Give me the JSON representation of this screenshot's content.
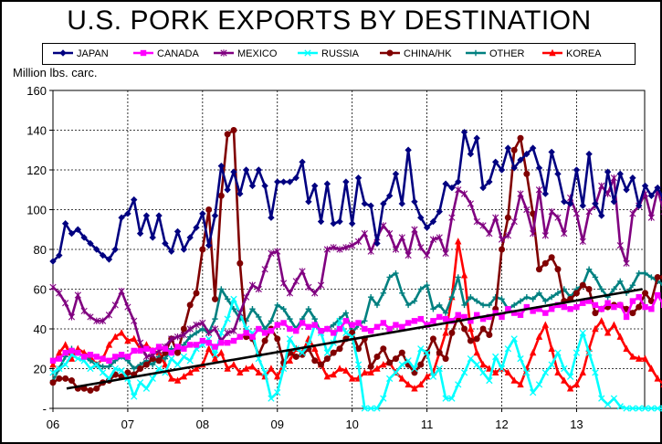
{
  "chart_data": {
    "type": "line",
    "title": "U.S. PORK EXPORTS BY DESTINATION",
    "ylabel": "Million lbs. carc.",
    "ylim": [
      0,
      160
    ],
    "yticks": [
      "-",
      "20",
      "40",
      "60",
      "80",
      "100",
      "120",
      "140",
      "160"
    ],
    "xticks": [
      "06",
      "07",
      "08",
      "09",
      "10",
      "11",
      "12",
      "13"
    ],
    "x_start": "2006-01",
    "x_end": "2013-09",
    "legend_position": "top",
    "grid": true,
    "trendline": {
      "color": "#000000",
      "from": {
        "x": "2006-01",
        "y": 10
      },
      "to": {
        "x": "2013-12",
        "y": 60
      }
    },
    "series": [
      {
        "name": "JAPAN",
        "color": "#000080",
        "marker": "diamond",
        "values": [
          74,
          77,
          93,
          88,
          90,
          86,
          83,
          80,
          77,
          75,
          80,
          96,
          98,
          105,
          88,
          97,
          86,
          97,
          83,
          79,
          89,
          80,
          86,
          91,
          98,
          82,
          97,
          122,
          110,
          119,
          108,
          120,
          112,
          120,
          112,
          96,
          114,
          114,
          114,
          116,
          124,
          104,
          112,
          94,
          113,
          93,
          94,
          114,
          93,
          116,
          103,
          102,
          83,
          103,
          107,
          118,
          103,
          130,
          104,
          96,
          91,
          94,
          99,
          113,
          111,
          114,
          139,
          128,
          136,
          111,
          114,
          124,
          120,
          131,
          121,
          125,
          128,
          131,
          121,
          108,
          129,
          118,
          104,
          103,
          120,
          102,
          128,
          103,
          97,
          119,
          104,
          118,
          110,
          116,
          102,
          112,
          107,
          111,
          105,
          104
        ]
      },
      {
        "name": "CANADA",
        "color": "#ff00ff",
        "marker": "square",
        "values": [
          24,
          25,
          28,
          29,
          28,
          26,
          27,
          26,
          25,
          24,
          26,
          27,
          26,
          29,
          29,
          30,
          29,
          31,
          30,
          28,
          31,
          30,
          32,
          32,
          34,
          33,
          31,
          33,
          33,
          34,
          36,
          38,
          36,
          40,
          38,
          39,
          42,
          43,
          40,
          39,
          43,
          41,
          42,
          39,
          40,
          38,
          40,
          44,
          42,
          43,
          40,
          39,
          41,
          43,
          40,
          42,
          41,
          43,
          44,
          45,
          42,
          44,
          46,
          45,
          44,
          47,
          46,
          44,
          47,
          45,
          46,
          48,
          46,
          50,
          48,
          47,
          51,
          49,
          50,
          48,
          50,
          52,
          51,
          50,
          51,
          53,
          54,
          52,
          50,
          53,
          51,
          52,
          46,
          54,
          56,
          51,
          50,
          57,
          52,
          50
        ]
      },
      {
        "name": "MEXICO",
        "color": "#800080",
        "marker": "star",
        "values": [
          61,
          58,
          53,
          46,
          57,
          49,
          46,
          44,
          44,
          47,
          52,
          59,
          51,
          44,
          33,
          26,
          27,
          29,
          31,
          35,
          36,
          37,
          40,
          42,
          43,
          38,
          40,
          34,
          38,
          39,
          48,
          56,
          62,
          60,
          70,
          78,
          79,
          63,
          58,
          64,
          69,
          61,
          58,
          62,
          80,
          81,
          80,
          81,
          82,
          84,
          88,
          79,
          86,
          92,
          88,
          80,
          86,
          77,
          90,
          81,
          77,
          85,
          86,
          78,
          96,
          110,
          108,
          103,
          94,
          92,
          88,
          96,
          85,
          87,
          94,
          108,
          100,
          88,
          110,
          87,
          99,
          96,
          88,
          106,
          98,
          84,
          99,
          102,
          112,
          108,
          116,
          82,
          73,
          98,
          102,
          108,
          96,
          110,
          99,
          100
        ]
      },
      {
        "name": "RUSSIA",
        "color": "#00ffff",
        "marker": "x",
        "values": [
          18,
          20,
          22,
          27,
          25,
          24,
          20,
          22,
          18,
          15,
          20,
          19,
          15,
          6,
          13,
          10,
          15,
          20,
          18,
          25,
          22,
          26,
          24,
          30,
          32,
          35,
          27,
          38,
          45,
          55,
          48,
          40,
          38,
          25,
          18,
          5,
          8,
          20,
          35,
          30,
          28,
          32,
          42,
          38,
          28,
          33,
          44,
          38,
          36,
          22,
          0,
          0,
          0,
          5,
          15,
          18,
          22,
          24,
          20,
          30,
          28,
          16,
          20,
          5,
          5,
          12,
          18,
          25,
          22,
          18,
          14,
          26,
          20,
          30,
          35,
          25,
          18,
          8,
          12,
          18,
          22,
          28,
          20,
          16,
          28,
          38,
          28,
          18,
          5,
          2,
          5,
          1,
          0,
          0,
          0,
          0,
          0,
          0,
          0,
          0
        ]
      },
      {
        "name": "CHINA/HK",
        "color": "#800000",
        "marker": "circle",
        "values": [
          13,
          15,
          15,
          14,
          10,
          10,
          9,
          10,
          13,
          14,
          17,
          16,
          18,
          17,
          20,
          22,
          25,
          24,
          28,
          35,
          28,
          40,
          52,
          58,
          80,
          100,
          55,
          107,
          138,
          140,
          73,
          36,
          35,
          27,
          34,
          40,
          35,
          23,
          28,
          26,
          27,
          30,
          24,
          22,
          25,
          28,
          30,
          35,
          38,
          30,
          35,
          21,
          26,
          30,
          23,
          25,
          28,
          22,
          18,
          22,
          28,
          35,
          28,
          25,
          38,
          46,
          40,
          34,
          35,
          40,
          37,
          50,
          80,
          96,
          130,
          136,
          118,
          98,
          70,
          73,
          76,
          70,
          54,
          55,
          58,
          62,
          60,
          48,
          50,
          51,
          52,
          52,
          50,
          48,
          51,
          58,
          54,
          66,
          66,
          60
        ]
      },
      {
        "name": "OTHER",
        "color": "#008080",
        "marker": "plus",
        "values": [
          14,
          20,
          26,
          30,
          28,
          26,
          24,
          22,
          21,
          21,
          24,
          26,
          24,
          20,
          22,
          24,
          22,
          26,
          25,
          30,
          28,
          32,
          36,
          38,
          40,
          38,
          45,
          60,
          55,
          50,
          45,
          44,
          50,
          46,
          40,
          44,
          52,
          50,
          45,
          40,
          45,
          50,
          45,
          38,
          40,
          42,
          45,
          48,
          38,
          42,
          44,
          56,
          52,
          58,
          66,
          68,
          58,
          52,
          54,
          60,
          62,
          50,
          52,
          48,
          56,
          66,
          52,
          56,
          54,
          52,
          52,
          56,
          55,
          50,
          52,
          54,
          56,
          55,
          58,
          54,
          56,
          58,
          60,
          56,
          60,
          62,
          70,
          66,
          60,
          56,
          60,
          64,
          58,
          62,
          68,
          68,
          66,
          64,
          62,
          60
        ]
      },
      {
        "name": "KOREA",
        "color": "#ff0000",
        "marker": "triangle",
        "values": [
          22,
          28,
          32,
          25,
          30,
          28,
          26,
          22,
          25,
          32,
          36,
          38,
          34,
          35,
          30,
          32,
          29,
          28,
          22,
          15,
          14,
          16,
          18,
          20,
          22,
          30,
          25,
          28,
          20,
          22,
          18,
          20,
          21,
          18,
          16,
          20,
          16,
          22,
          24,
          30,
          28,
          35,
          30,
          22,
          16,
          17,
          20,
          19,
          15,
          15,
          18,
          18,
          20,
          22,
          23,
          18,
          15,
          12,
          10,
          12,
          16,
          18,
          28,
          38,
          56,
          84,
          67,
          40,
          28,
          22,
          20,
          18,
          20,
          18,
          14,
          12,
          20,
          28,
          36,
          42,
          30,
          18,
          14,
          10,
          12,
          18,
          30,
          40,
          44,
          38,
          42,
          36,
          30,
          26,
          25,
          25,
          20,
          15,
          12,
          8
        ]
      }
    ]
  },
  "legend": {
    "entries": [
      "JAPAN",
      "CANADA",
      "MEXICO",
      "RUSSIA",
      "CHINA/HK",
      "OTHER",
      "KOREA"
    ]
  }
}
